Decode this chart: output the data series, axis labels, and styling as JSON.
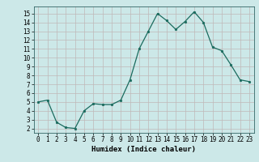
{
  "x": [
    0,
    1,
    2,
    3,
    4,
    5,
    6,
    7,
    8,
    9,
    10,
    11,
    12,
    13,
    14,
    15,
    16,
    17,
    18,
    19,
    20,
    21,
    22,
    23
  ],
  "y": [
    5.0,
    5.2,
    2.7,
    2.1,
    2.0,
    4.0,
    4.8,
    4.7,
    4.7,
    5.2,
    7.5,
    11.0,
    13.0,
    15.0,
    14.2,
    13.2,
    14.1,
    15.2,
    14.0,
    11.2,
    10.8,
    9.2,
    7.5,
    7.3
  ],
  "xlabel": "Humidex (Indice chaleur)",
  "xlim": [
    -0.5,
    23.5
  ],
  "ylim": [
    1.5,
    15.8
  ],
  "yticks": [
    2,
    3,
    4,
    5,
    6,
    7,
    8,
    9,
    10,
    11,
    12,
    13,
    14,
    15
  ],
  "xticks": [
    0,
    1,
    2,
    3,
    4,
    5,
    6,
    7,
    8,
    9,
    10,
    11,
    12,
    13,
    14,
    15,
    16,
    17,
    18,
    19,
    20,
    21,
    22,
    23
  ],
  "line_color": "#1a6b5e",
  "marker_size": 1.8,
  "bg_color": "#cce8e8",
  "grid_color": "#c0b8b8",
  "xlabel_fontsize": 6.5,
  "tick_fontsize": 5.5
}
